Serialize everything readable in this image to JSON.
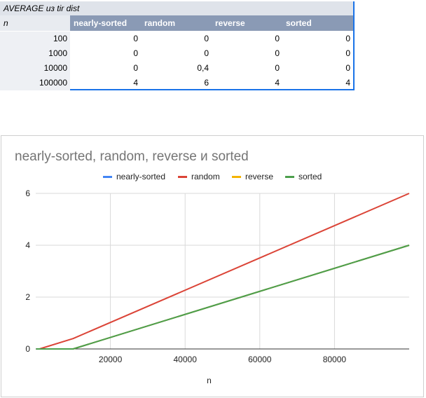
{
  "pivot": {
    "title": "AVERAGE из tir dist",
    "row_header": "n",
    "columns": [
      "nearly-sorted",
      "random",
      "reverse",
      "sorted"
    ],
    "rows": [
      {
        "n": "100",
        "values": [
          "0",
          "0",
          "0",
          "0"
        ]
      },
      {
        "n": "1000",
        "values": [
          "0",
          "0",
          "0",
          "0"
        ]
      },
      {
        "n": "10000",
        "values": [
          "0",
          "0,4",
          "0",
          "0"
        ]
      },
      {
        "n": "100000",
        "values": [
          "4",
          "6",
          "4",
          "4"
        ]
      }
    ]
  },
  "chart_data": {
    "type": "line",
    "title": "nearly-sorted, random, reverse и sorted",
    "xlabel": "n",
    "ylabel": "",
    "x": [
      100,
      1000,
      10000,
      100000
    ],
    "xlim": [
      0,
      100000
    ],
    "ylim": [
      0,
      6
    ],
    "x_ticks": [
      "20000",
      "40000",
      "60000",
      "80000"
    ],
    "y_ticks": [
      "0",
      "2",
      "4",
      "6"
    ],
    "grid": true,
    "legend_position": "top",
    "series": [
      {
        "name": "nearly-sorted",
        "color": "#4285f4",
        "values": [
          0,
          0,
          0,
          4
        ]
      },
      {
        "name": "random",
        "color": "#db4437",
        "values": [
          0,
          0,
          0.4,
          6
        ]
      },
      {
        "name": "reverse",
        "color": "#f4b400",
        "values": [
          0,
          0,
          0,
          4
        ]
      },
      {
        "name": "sorted",
        "color": "#4c9f4c",
        "values": [
          0,
          0,
          0,
          4
        ]
      }
    ]
  }
}
